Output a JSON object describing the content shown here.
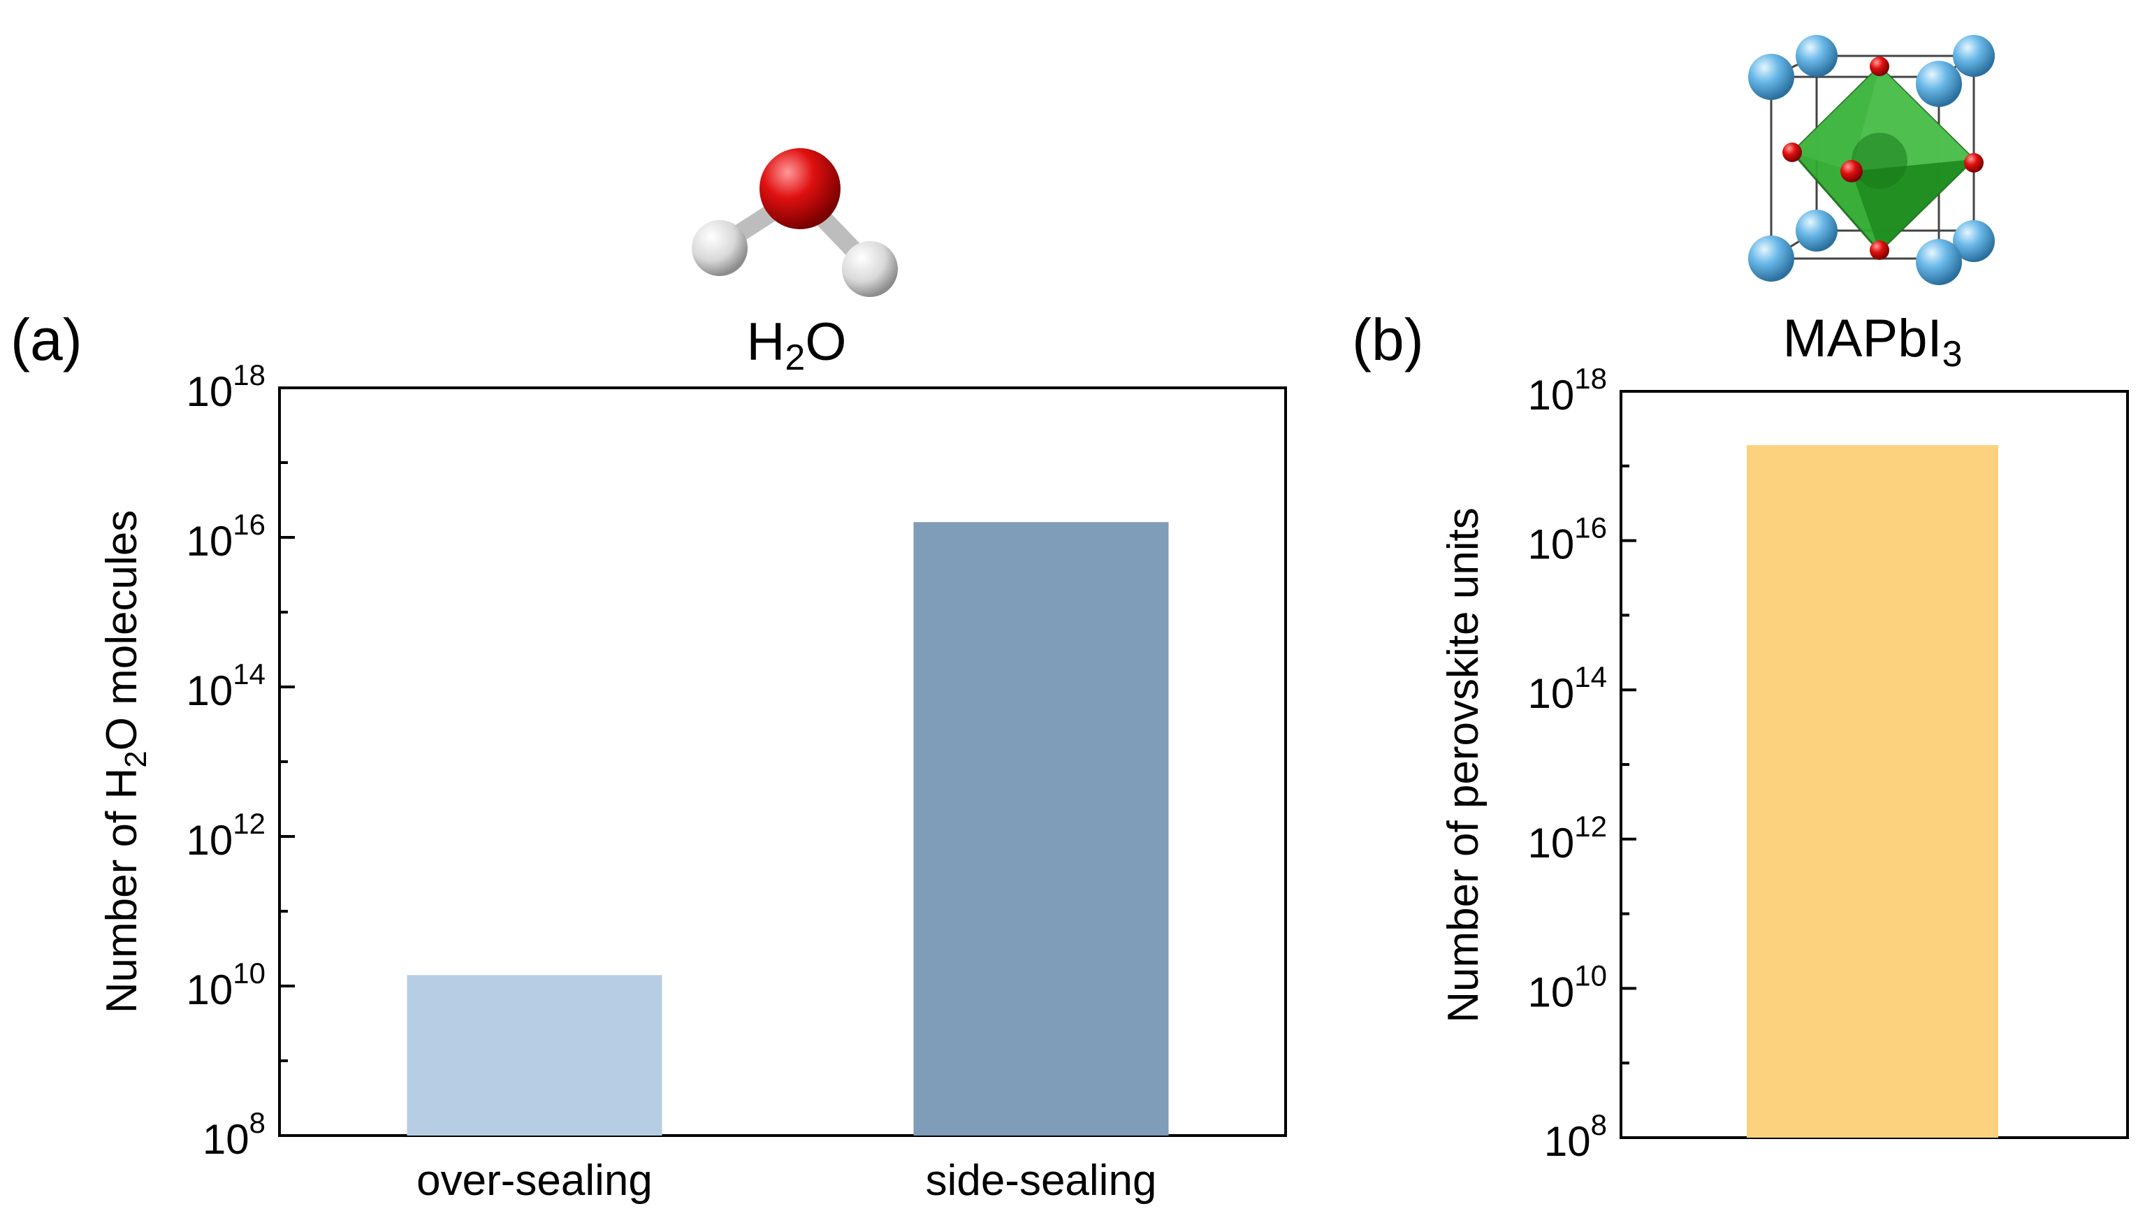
{
  "chart_data": [
    {
      "type": "bar",
      "panel_label": "(a)",
      "title_main": "H",
      "title_sub": "2",
      "title_tail": "O",
      "ylabel_pre": "Number of H",
      "ylabel_sub": "2",
      "ylabel_post": "O molecules",
      "xlabel": "",
      "yscale": "log",
      "ylim": [
        100000000.0,
        1e+18
      ],
      "tick_base": "10",
      "ytick_exponents": [
        "8",
        "10",
        "12",
        "14",
        "16",
        "18"
      ],
      "categories": [
        "over-sealing",
        "side-sealing"
      ],
      "values": [
        14000000000.0,
        1.6e+16
      ],
      "colors": [
        "#b7cde3",
        "#7f9cb8"
      ],
      "grid": false,
      "legend": "none"
    },
    {
      "type": "bar",
      "panel_label": "(b)",
      "title_main": "MAPbI",
      "title_sub": "3",
      "title_tail": "",
      "ylabel_pre": "Number of perovskite units",
      "ylabel_sub": "",
      "ylabel_post": "",
      "xlabel": "",
      "yscale": "log",
      "ylim": [
        100000000.0,
        1e+18
      ],
      "tick_base": "10",
      "ytick_exponents": [
        "8",
        "10",
        "12",
        "14",
        "16",
        "18"
      ],
      "categories": [
        ""
      ],
      "values": [
        1.9e+17
      ],
      "colors": [
        "#fdd27e"
      ],
      "grid": false,
      "legend": "none"
    }
  ],
  "icons": {
    "molecule_a": "water-molecule-icon",
    "molecule_b": "perovskite-crystal-icon"
  }
}
